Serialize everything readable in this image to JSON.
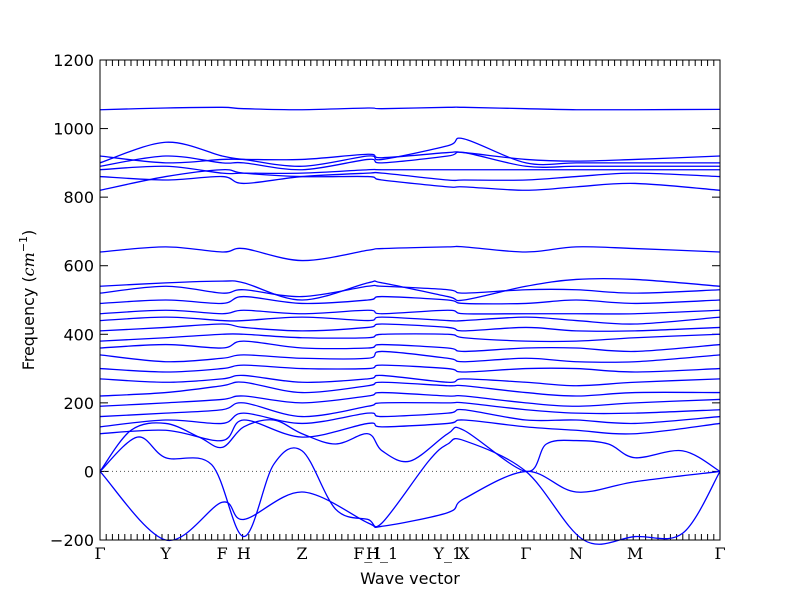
{
  "chart_data": {
    "type": "line",
    "title": "",
    "xlabel": "Wave vector",
    "ylabel_text": "Frequency (",
    "ylabel_unit_base": "cm",
    "ylabel_unit_exp": "−1",
    "ylabel_close": ")",
    "ylim": [
      -200,
      1200
    ],
    "yticks": [
      -200,
      0,
      200,
      400,
      600,
      800,
      1000,
      1200
    ],
    "ytick_labels": [
      "−200",
      "0",
      "200",
      "400",
      "600",
      "800",
      "1000",
      "1200"
    ],
    "xlim": [
      0,
      1
    ],
    "high_symmetry_points": [
      {
        "label": "Γ",
        "x": 0.0
      },
      {
        "label": "Y",
        "x": 0.106
      },
      {
        "label": "F",
        "x": 0.197
      },
      {
        "label": "H",
        "x": 0.232
      },
      {
        "label": "Z",
        "x": 0.326
      },
      {
        "label": "F_1",
        "x": 0.432
      },
      {
        "label": "H_1",
        "x": 0.455
      },
      {
        "label": "Y_1",
        "x": 0.561
      },
      {
        "label": "X",
        "x": 0.587
      },
      {
        "label": "Γ",
        "x": 0.687
      },
      {
        "label": "N",
        "x": 0.768
      },
      {
        "label": "M",
        "x": 0.863
      },
      {
        "label": "Γ",
        "x": 1.0
      }
    ],
    "zero_line": true,
    "line_color": "#0000ff",
    "series": [
      {
        "x": [
          0,
          0.106,
          0.197,
          0.232,
          0.326,
          0.432,
          0.455,
          0.561,
          0.587,
          0.687,
          0.768,
          0.863,
          1
        ],
        "y": [
          0,
          -200,
          -90,
          -140,
          -60,
          -150,
          -160,
          -120,
          -80,
          0,
          -60,
          -30,
          0
        ]
      },
      {
        "x": [
          0,
          0.06,
          0.106,
          0.18,
          0.232,
          0.28,
          0.326,
          0.38,
          0.432,
          0.455,
          0.53,
          0.561,
          0.587,
          0.687,
          0.78,
          0.863,
          0.94,
          1
        ],
        "y": [
          0,
          100,
          40,
          20,
          -190,
          20,
          60,
          -110,
          -140,
          -150,
          30,
          80,
          90,
          0,
          -200,
          -190,
          -180,
          0
        ]
      },
      {
        "x": [
          0,
          0.05,
          0.106,
          0.16,
          0.197,
          0.232,
          0.28,
          0.326,
          0.38,
          0.432,
          0.455,
          0.5,
          0.561,
          0.587,
          0.687,
          0.72,
          0.768,
          0.82,
          0.863,
          0.94,
          1
        ],
        "y": [
          0,
          120,
          140,
          100,
          70,
          130,
          150,
          110,
          80,
          110,
          60,
          30,
          110,
          120,
          0,
          80,
          90,
          80,
          40,
          60,
          0
        ]
      },
      {
        "x": [
          0,
          0.106,
          0.197,
          0.232,
          0.326,
          0.432,
          0.455,
          0.561,
          0.587,
          0.687,
          0.768,
          0.863,
          1
        ],
        "y": [
          110,
          120,
          90,
          150,
          100,
          140,
          130,
          140,
          150,
          130,
          120,
          110,
          140
        ]
      },
      {
        "x": [
          0,
          0.106,
          0.197,
          0.232,
          0.326,
          0.432,
          0.455,
          0.561,
          0.587,
          0.687,
          0.768,
          0.863,
          1
        ],
        "y": [
          130,
          150,
          140,
          170,
          140,
          170,
          160,
          170,
          180,
          150,
          150,
          140,
          160
        ]
      },
      {
        "x": [
          0,
          0.106,
          0.197,
          0.232,
          0.326,
          0.432,
          0.455,
          0.561,
          0.587,
          0.687,
          0.768,
          0.863,
          1
        ],
        "y": [
          160,
          170,
          180,
          200,
          160,
          190,
          200,
          200,
          200,
          180,
          170,
          170,
          180
        ]
      },
      {
        "x": [
          0,
          0.106,
          0.197,
          0.232,
          0.326,
          0.432,
          0.455,
          0.561,
          0.587,
          0.687,
          0.768,
          0.863,
          1
        ],
        "y": [
          190,
          200,
          210,
          220,
          200,
          220,
          230,
          220,
          220,
          200,
          190,
          200,
          210
        ]
      },
      {
        "x": [
          0,
          0.106,
          0.197,
          0.232,
          0.326,
          0.432,
          0.455,
          0.561,
          0.587,
          0.687,
          0.768,
          0.863,
          1
        ],
        "y": [
          220,
          230,
          250,
          260,
          230,
          250,
          260,
          250,
          250,
          230,
          220,
          230,
          230
        ]
      },
      {
        "x": [
          0,
          0.106,
          0.197,
          0.232,
          0.326,
          0.432,
          0.455,
          0.561,
          0.587,
          0.687,
          0.768,
          0.863,
          1
        ],
        "y": [
          270,
          260,
          270,
          280,
          260,
          270,
          280,
          260,
          270,
          260,
          250,
          260,
          270
        ]
      },
      {
        "x": [
          0,
          0.106,
          0.197,
          0.232,
          0.326,
          0.432,
          0.455,
          0.561,
          0.587,
          0.687,
          0.768,
          0.863,
          1
        ],
        "y": [
          300,
          290,
          300,
          310,
          300,
          300,
          310,
          300,
          290,
          300,
          300,
          290,
          300
        ]
      },
      {
        "x": [
          0,
          0.106,
          0.197,
          0.232,
          0.326,
          0.432,
          0.455,
          0.561,
          0.587,
          0.687,
          0.768,
          0.863,
          1
        ],
        "y": [
          340,
          320,
          330,
          340,
          330,
          330,
          350,
          330,
          320,
          330,
          320,
          320,
          340
        ]
      },
      {
        "x": [
          0,
          0.106,
          0.197,
          0.232,
          0.326,
          0.432,
          0.455,
          0.561,
          0.587,
          0.687,
          0.768,
          0.863,
          1
        ],
        "y": [
          360,
          370,
          360,
          380,
          360,
          360,
          370,
          360,
          350,
          360,
          360,
          350,
          370
        ]
      },
      {
        "x": [
          0,
          0.106,
          0.197,
          0.232,
          0.326,
          0.432,
          0.455,
          0.561,
          0.587,
          0.687,
          0.768,
          0.863,
          1
        ],
        "y": [
          380,
          390,
          400,
          400,
          390,
          390,
          400,
          400,
          390,
          380,
          380,
          390,
          400
        ]
      },
      {
        "x": [
          0,
          0.106,
          0.197,
          0.232,
          0.326,
          0.432,
          0.455,
          0.561,
          0.587,
          0.687,
          0.768,
          0.863,
          1
        ],
        "y": [
          410,
          420,
          430,
          420,
          410,
          420,
          430,
          420,
          410,
          420,
          410,
          410,
          420
        ]
      },
      {
        "x": [
          0,
          0.106,
          0.197,
          0.232,
          0.326,
          0.432,
          0.455,
          0.561,
          0.587,
          0.687,
          0.768,
          0.863,
          1
        ],
        "y": [
          440,
          450,
          440,
          440,
          450,
          440,
          450,
          440,
          440,
          450,
          440,
          430,
          450
        ]
      },
      {
        "x": [
          0,
          0.106,
          0.197,
          0.232,
          0.326,
          0.432,
          0.455,
          0.561,
          0.587,
          0.687,
          0.768,
          0.863,
          1
        ],
        "y": [
          460,
          470,
          460,
          470,
          460,
          470,
          460,
          470,
          460,
          460,
          460,
          460,
          470
        ]
      },
      {
        "x": [
          0,
          0.106,
          0.197,
          0.232,
          0.326,
          0.432,
          0.455,
          0.561,
          0.587,
          0.687,
          0.768,
          0.863,
          1
        ],
        "y": [
          490,
          500,
          490,
          510,
          490,
          500,
          510,
          500,
          490,
          490,
          500,
          490,
          500
        ]
      },
      {
        "x": [
          0,
          0.106,
          0.197,
          0.232,
          0.326,
          0.432,
          0.455,
          0.561,
          0.587,
          0.687,
          0.768,
          0.863,
          1
        ],
        "y": [
          520,
          540,
          520,
          530,
          510,
          540,
          540,
          530,
          520,
          530,
          530,
          520,
          530
        ]
      },
      {
        "x": [
          0,
          0.106,
          0.197,
          0.232,
          0.326,
          0.432,
          0.455,
          0.561,
          0.587,
          0.687,
          0.768,
          0.863,
          1
        ],
        "y": [
          540,
          550,
          555,
          550,
          500,
          550,
          550,
          510,
          500,
          540,
          560,
          560,
          540
        ]
      },
      {
        "x": [
          0,
          0.106,
          0.197,
          0.232,
          0.326,
          0.432,
          0.455,
          0.561,
          0.587,
          0.687,
          0.768,
          0.863,
          1
        ],
        "y": [
          640,
          655,
          640,
          650,
          615,
          645,
          650,
          655,
          655,
          640,
          655,
          650,
          640
        ]
      },
      {
        "x": [
          0,
          0.106,
          0.197,
          0.232,
          0.326,
          0.432,
          0.455,
          0.561,
          0.587,
          0.687,
          0.768,
          0.863,
          1
        ],
        "y": [
          820,
          860,
          880,
          870,
          860,
          860,
          850,
          830,
          830,
          820,
          830,
          840,
          820
        ]
      },
      {
        "x": [
          0,
          0.106,
          0.197,
          0.232,
          0.326,
          0.432,
          0.455,
          0.561,
          0.587,
          0.687,
          0.768,
          0.863,
          1
        ],
        "y": [
          860,
          850,
          860,
          840,
          860,
          870,
          870,
          850,
          850,
          850,
          860,
          870,
          860
        ]
      },
      {
        "x": [
          0,
          0.106,
          0.197,
          0.232,
          0.326,
          0.432,
          0.455,
          0.561,
          0.587,
          0.687,
          0.768,
          0.863,
          1
        ],
        "y": [
          880,
          890,
          870,
          870,
          870,
          880,
          880,
          880,
          880,
          880,
          880,
          880,
          880
        ]
      },
      {
        "x": [
          0,
          0.106,
          0.197,
          0.232,
          0.326,
          0.432,
          0.455,
          0.561,
          0.587,
          0.687,
          0.768,
          0.863,
          1
        ],
        "y": [
          890,
          920,
          900,
          900,
          880,
          910,
          900,
          920,
          930,
          890,
          890,
          890,
          890
        ]
      },
      {
        "x": [
          0,
          0.106,
          0.197,
          0.232,
          0.326,
          0.432,
          0.455,
          0.561,
          0.587,
          0.687,
          0.768,
          0.863,
          1
        ],
        "y": [
          900,
          960,
          920,
          910,
          890,
          920,
          910,
          950,
          970,
          900,
          900,
          900,
          900
        ]
      },
      {
        "x": [
          0,
          0.106,
          0.197,
          0.232,
          0.326,
          0.432,
          0.455,
          0.561,
          0.587,
          0.687,
          0.768,
          0.863,
          1
        ],
        "y": [
          920,
          900,
          910,
          910,
          910,
          925,
          915,
          930,
          930,
          910,
          905,
          910,
          920
        ]
      },
      {
        "x": [
          0,
          0.106,
          0.197,
          0.232,
          0.326,
          0.432,
          0.455,
          0.561,
          0.587,
          0.687,
          0.768,
          0.863,
          1
        ],
        "y": [
          1055,
          1060,
          1062,
          1058,
          1055,
          1060,
          1058,
          1062,
          1062,
          1058,
          1055,
          1055,
          1056
        ]
      }
    ]
  }
}
